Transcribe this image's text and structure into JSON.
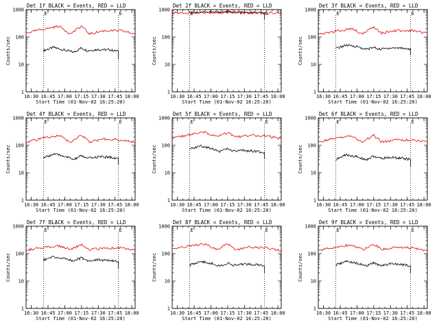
{
  "colors": {
    "events": "#000000",
    "lld": "#e00000",
    "frame": "#000000",
    "background": "#ffffff"
  },
  "chart_data": [
    {
      "type": "line",
      "title": "Det 1f BLACK = Events, RED = LLD",
      "xlabel": "Start Time (01-Nov-02 16:25:20)",
      "ylabel": "Counts/sec",
      "xlim": [
        "16:25:20",
        "18:03"
      ],
      "ylim": [
        1,
        1000
      ],
      "yscale": "log",
      "xticks": [
        "16:30",
        "16:45",
        "17:00",
        "17:15",
        "17:30",
        "17:45",
        "18:00"
      ],
      "yticks": [
        "1",
        "10",
        "100",
        "1000"
      ],
      "markers": [
        {
          "label": "E",
          "x": "16:41"
        },
        {
          "label": "E",
          "x": "17:48"
        }
      ],
      "series": [
        {
          "name": "BLACK",
          "x": [
            "16:41",
            "16:50",
            "17:00",
            "17:08",
            "17:15",
            "17:20",
            "17:30",
            "17:40",
            "17:48"
          ],
          "values": [
            32,
            42,
            33,
            28,
            40,
            32,
            35,
            34,
            30
          ]
        },
        {
          "name": "RED",
          "x": [
            "16:25:20",
            "16:40",
            "16:55",
            "17:05",
            "17:15",
            "17:22",
            "17:35",
            "17:50",
            "18:03"
          ],
          "values": [
            140,
            190,
            250,
            130,
            250,
            130,
            170,
            170,
            130
          ]
        }
      ]
    },
    {
      "type": "line",
      "title": "Det 2f BLACK = Events, RED = LLD",
      "xlabel": "Start Time (01-Nov-02 16:25:20)",
      "ylabel": "Counts/sec",
      "xlim": [
        "16:25:20",
        "18:03"
      ],
      "ylim": [
        1,
        1000
      ],
      "yscale": "log",
      "xticks": [
        "16:30",
        "16:45",
        "17:00",
        "17:15",
        "17:30",
        "17:45",
        "18:00"
      ],
      "yticks": [
        "1",
        "10",
        "100",
        "1000"
      ],
      "markers": [
        {
          "label": "E",
          "x": "16:41"
        },
        {
          "label": "E",
          "x": "17:48"
        }
      ],
      "series": [
        {
          "name": "BLACK",
          "x": [
            "16:41",
            "16:55",
            "17:05",
            "17:15",
            "17:25",
            "17:35",
            "17:48"
          ],
          "values": [
            780,
            820,
            790,
            830,
            780,
            760,
            740
          ]
        },
        {
          "name": "RED",
          "x": [
            "16:25:20",
            "16:45",
            "17:00",
            "17:15",
            "17:30",
            "17:45",
            "18:03"
          ],
          "values": [
            750,
            790,
            780,
            800,
            770,
            760,
            760
          ]
        }
      ]
    },
    {
      "type": "line",
      "title": "Det 3f BLACK = Events, RED = LLD",
      "xlabel": "Start Time (01-Nov-02 16:25:20)",
      "ylabel": "Counts/sec",
      "xlim": [
        "16:25:20",
        "18:03"
      ],
      "ylim": [
        1,
        1000
      ],
      "yscale": "log",
      "xticks": [
        "16:30",
        "16:45",
        "17:00",
        "17:15",
        "17:30",
        "17:45",
        "18:00"
      ],
      "yticks": [
        "1",
        "10",
        "100",
        "1000"
      ],
      "markers": [
        {
          "label": "E",
          "x": "16:41"
        },
        {
          "label": "E",
          "x": "17:48"
        }
      ],
      "series": [
        {
          "name": "BLACK",
          "x": [
            "16:41",
            "16:50",
            "17:00",
            "17:08",
            "17:15",
            "17:20",
            "17:30",
            "17:40",
            "17:48"
          ],
          "values": [
            38,
            50,
            45,
            35,
            42,
            36,
            40,
            40,
            36
          ]
        },
        {
          "name": "RED",
          "x": [
            "16:25:20",
            "16:40",
            "16:55",
            "17:05",
            "17:15",
            "17:22",
            "17:35",
            "17:50",
            "18:03"
          ],
          "values": [
            120,
            160,
            200,
            130,
            240,
            140,
            170,
            170,
            140
          ]
        }
      ]
    },
    {
      "type": "line",
      "title": "Det 4f BLACK = Events, RED = LLD",
      "xlabel": "Start Time (01-Nov-02 16:25:20)",
      "ylabel": "Counts/sec",
      "xlim": [
        "16:25:20",
        "18:03"
      ],
      "ylim": [
        1,
        1000
      ],
      "yscale": "log",
      "xticks": [
        "16:30",
        "16:45",
        "17:00",
        "17:15",
        "17:30",
        "17:45",
        "18:00"
      ],
      "yticks": [
        "1",
        "10",
        "100",
        "1000"
      ],
      "markers": [
        {
          "label": "E",
          "x": "16:41"
        },
        {
          "label": "E",
          "x": "17:48"
        }
      ],
      "series": [
        {
          "name": "BLACK",
          "x": [
            "16:41",
            "16:50",
            "17:00",
            "17:08",
            "17:15",
            "17:20",
            "17:30",
            "17:40",
            "17:48"
          ],
          "values": [
            35,
            48,
            40,
            30,
            42,
            33,
            38,
            37,
            33
          ]
        },
        {
          "name": "RED",
          "x": [
            "16:25:20",
            "16:40",
            "16:55",
            "17:05",
            "17:15",
            "17:22",
            "17:35",
            "17:50",
            "18:03"
          ],
          "values": [
            130,
            180,
            230,
            130,
            240,
            130,
            170,
            160,
            130
          ]
        }
      ]
    },
    {
      "type": "line",
      "title": "Det 5f BLACK = Events, RED = LLD",
      "xlabel": "Start Time (01-Nov-02 16:25:20)",
      "ylabel": "Counts/sec",
      "xlim": [
        "16:25:20",
        "18:03"
      ],
      "ylim": [
        1,
        1000
      ],
      "yscale": "log",
      "xticks": [
        "16:30",
        "16:45",
        "17:00",
        "17:15",
        "17:30",
        "17:45",
        "18:00"
      ],
      "yticks": [
        "1",
        "10",
        "100",
        "1000"
      ],
      "markers": [
        {
          "label": "E",
          "x": "16:41"
        },
        {
          "label": "E",
          "x": "17:48"
        }
      ],
      "series": [
        {
          "name": "BLACK",
          "x": [
            "16:41",
            "16:50",
            "17:00",
            "17:08",
            "17:15",
            "17:20",
            "17:30",
            "17:40",
            "17:48"
          ],
          "values": [
            70,
            95,
            80,
            60,
            75,
            60,
            65,
            60,
            55
          ]
        },
        {
          "name": "RED",
          "x": [
            "16:25:20",
            "16:40",
            "16:55",
            "17:05",
            "17:15",
            "17:22",
            "17:35",
            "17:50",
            "18:03"
          ],
          "values": [
            180,
            240,
            300,
            200,
            290,
            200,
            230,
            220,
            170
          ]
        }
      ]
    },
    {
      "type": "line",
      "title": "Det 6f BLACK = Events, RED = LLD",
      "xlabel": "Start Time (01-Nov-02 16:25:20)",
      "ylabel": "Counts/sec",
      "xlim": [
        "16:25:20",
        "18:03"
      ],
      "ylim": [
        1,
        1000
      ],
      "yscale": "log",
      "xticks": [
        "16:30",
        "16:45",
        "17:00",
        "17:15",
        "17:30",
        "17:45",
        "18:00"
      ],
      "yticks": [
        "1",
        "10",
        "100",
        "1000"
      ],
      "markers": [
        {
          "label": "E",
          "x": "16:41"
        },
        {
          "label": "E",
          "x": "17:48"
        }
      ],
      "series": [
        {
          "name": "BLACK",
          "x": [
            "16:41",
            "16:50",
            "17:00",
            "17:08",
            "17:15",
            "17:20",
            "17:30",
            "17:40",
            "17:48"
          ],
          "values": [
            30,
            45,
            38,
            30,
            40,
            33,
            36,
            34,
            30
          ]
        },
        {
          "name": "RED",
          "x": [
            "16:25:20",
            "16:40",
            "16:55",
            "17:05",
            "17:15",
            "17:22",
            "17:35",
            "17:50",
            "18:03"
          ],
          "values": [
            130,
            180,
            220,
            130,
            230,
            130,
            160,
            150,
            130
          ]
        }
      ]
    },
    {
      "type": "line",
      "title": "Det 7f BLACK = Events, RED = LLD",
      "xlabel": "Start Time (01-Nov-02 16:25:20)",
      "ylabel": "Counts/sec",
      "xlim": [
        "16:25:20",
        "18:03"
      ],
      "ylim": [
        1,
        1000
      ],
      "yscale": "log",
      "xticks": [
        "16:30",
        "16:45",
        "17:00",
        "17:15",
        "17:30",
        "17:45",
        "18:00"
      ],
      "yticks": [
        "1",
        "10",
        "100",
        "1000"
      ],
      "markers": [
        {
          "label": "E",
          "x": "16:41"
        },
        {
          "label": "E",
          "x": "17:48"
        }
      ],
      "series": [
        {
          "name": "BLACK",
          "x": [
            "16:41",
            "16:50",
            "17:00",
            "17:08",
            "17:15",
            "17:20",
            "17:30",
            "17:40",
            "17:48"
          ],
          "values": [
            60,
            75,
            65,
            55,
            70,
            55,
            60,
            55,
            50
          ]
        },
        {
          "name": "RED",
          "x": [
            "16:25:20",
            "16:40",
            "16:55",
            "17:05",
            "17:15",
            "17:22",
            "17:35",
            "17:50",
            "18:03"
          ],
          "values": [
            130,
            170,
            190,
            140,
            220,
            140,
            160,
            160,
            130
          ]
        }
      ]
    },
    {
      "type": "line",
      "title": "Det 8f BLACK = Events, RED = LLD",
      "xlabel": "Start Time (01-Nov-02 16:25:20)",
      "ylabel": "Counts/sec",
      "xlim": [
        "16:25:20",
        "18:03"
      ],
      "ylim": [
        1,
        1000
      ],
      "yscale": "log",
      "xticks": [
        "16:30",
        "16:45",
        "17:00",
        "17:15",
        "17:30",
        "17:45",
        "18:00"
      ],
      "yticks": [
        "1",
        "10",
        "100",
        "1000"
      ],
      "markers": [
        {
          "label": "E",
          "x": "16:41"
        },
        {
          "label": "E",
          "x": "17:48"
        }
      ],
      "series": [
        {
          "name": "BLACK",
          "x": [
            "16:41",
            "16:50",
            "17:00",
            "17:08",
            "17:15",
            "17:20",
            "17:30",
            "17:40",
            "17:48"
          ],
          "values": [
            38,
            52,
            45,
            35,
            45,
            37,
            42,
            40,
            35
          ]
        },
        {
          "name": "RED",
          "x": [
            "16:25:20",
            "16:40",
            "16:55",
            "17:05",
            "17:15",
            "17:22",
            "17:35",
            "17:50",
            "18:03"
          ],
          "values": [
            140,
            190,
            220,
            140,
            230,
            140,
            170,
            160,
            130
          ]
        }
      ]
    },
    {
      "type": "line",
      "title": "Det 9f BLACK = Events, RED = LLD",
      "xlabel": "Start Time (01-Nov-02 16:25:20)",
      "ylabel": "Counts/sec",
      "xlim": [
        "16:25:20",
        "18:03"
      ],
      "ylim": [
        1,
        1000
      ],
      "yscale": "log",
      "xticks": [
        "16:30",
        "16:45",
        "17:00",
        "17:15",
        "17:30",
        "17:45",
        "18:00"
      ],
      "yticks": [
        "1",
        "10",
        "100",
        "1000"
      ],
      "markers": [
        {
          "label": "E",
          "x": "16:41"
        },
        {
          "label": "E",
          "x": "17:48"
        }
      ],
      "series": [
        {
          "name": "BLACK",
          "x": [
            "16:41",
            "16:50",
            "17:00",
            "17:08",
            "17:15",
            "17:20",
            "17:30",
            "17:40",
            "17:48"
          ],
          "values": [
            38,
            52,
            45,
            35,
            46,
            37,
            42,
            40,
            36
          ]
        },
        {
          "name": "RED",
          "x": [
            "16:25:20",
            "16:40",
            "16:55",
            "17:05",
            "17:15",
            "17:22",
            "17:35",
            "17:50",
            "18:03"
          ],
          "values": [
            130,
            175,
            210,
            140,
            230,
            140,
            170,
            160,
            130
          ]
        }
      ]
    }
  ]
}
